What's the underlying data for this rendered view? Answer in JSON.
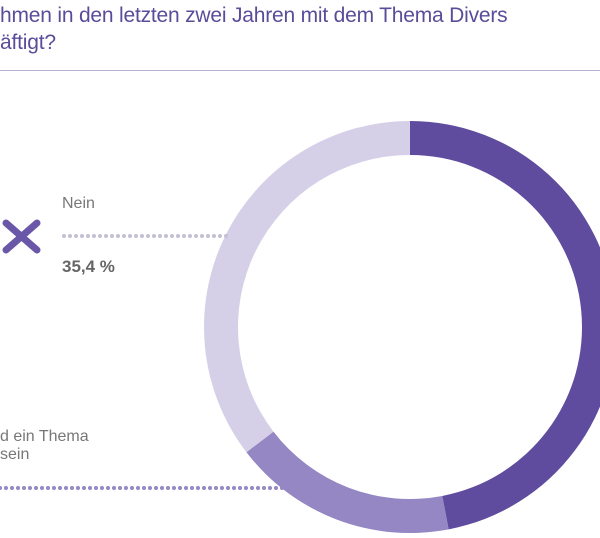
{
  "title": {
    "line1": "hmen in den letzten zwei Jahren mit dem Thema Divers",
    "line2": "äftigt?"
  },
  "chart_data": {
    "type": "pie",
    "donut": true,
    "slices": [
      {
        "label": "",
        "value": 47.0,
        "color": "#5f4c9e"
      },
      {
        "label_lines": [
          "d ein Thema",
          "sein"
        ],
        "value": 17.6,
        "color": "#9487c4"
      },
      {
        "label": "Nein",
        "value": 35.4,
        "value_label": "35,4 %",
        "color": "#d5d0e8"
      }
    ]
  }
}
